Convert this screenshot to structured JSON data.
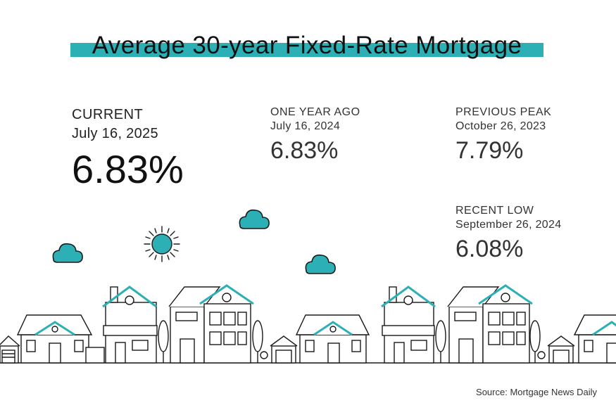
{
  "title": "Average 30-year Fixed-Rate Mortgage",
  "stats": {
    "current": {
      "label": "CURRENT",
      "date": "July 16, 2025",
      "rate": "6.83%"
    },
    "year_ago": {
      "label": "ONE YEAR AGO",
      "date": "July 16, 2024",
      "rate": "6.83%"
    },
    "peak": {
      "label": "PREVIOUS PEAK",
      "date": "October 26, 2023",
      "rate": "7.79%"
    },
    "low": {
      "label": "RECENT LOW",
      "date": "September 26, 2024",
      "rate": "6.08%"
    }
  },
  "source": "Source: Mortgage News Daily",
  "colors": {
    "accent": "#2db0b5",
    "text": "#222222",
    "background": "#ffffff"
  },
  "icons": [
    "sun-icon",
    "cloud-icon",
    "house-icon",
    "tree-icon"
  ]
}
